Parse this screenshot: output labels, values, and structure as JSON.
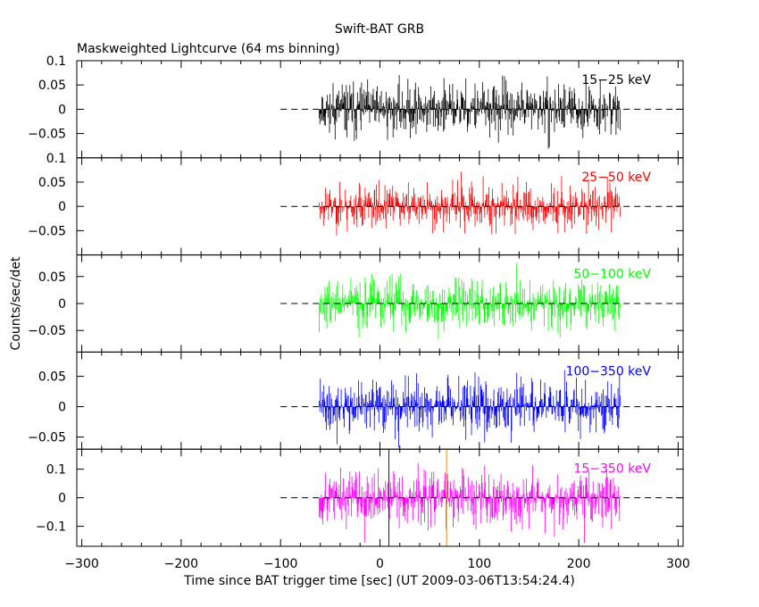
{
  "title": "Swift-BAT GRB",
  "subtitle": "Maskweighted Lightcurve (64 ms binning)",
  "chart_data": {
    "type": "line",
    "ylabel": "Counts/sec/det",
    "xlabel": "Time since BAT trigger time [sec] (UT 2009-03-06T13:54:24.4)",
    "xlim": [
      -305,
      305
    ],
    "xticks": [
      -300,
      -200,
      -100,
      0,
      100,
      200,
      300
    ],
    "xtick_labels": [
      "−300",
      "−200",
      "−100",
      "0",
      "100",
      "200",
      "300"
    ],
    "data_range": [
      -61,
      242
    ],
    "zero_line_from": -100,
    "panels": [
      {
        "name": "15-25 keV",
        "label": "15−25 keV",
        "color": "#000000",
        "ylim": [
          -0.1,
          0.1
        ],
        "yticks": [
          0.1,
          0.05,
          0,
          -0.05
        ],
        "ytick_labels": [
          "0.1",
          "0.05",
          "0",
          "−0.05"
        ],
        "noise_std": 0.027,
        "seed": 11
      },
      {
        "name": "25-50 keV",
        "label": "25−50 keV",
        "color": "#ff0000",
        "ylim": [
          -0.1,
          0.1
        ],
        "yticks": [
          0.1,
          0.05,
          0,
          -0.05
        ],
        "ytick_labels": [
          "0.1",
          "0.05",
          "0",
          "−0.05"
        ],
        "noise_std": 0.024,
        "seed": 23
      },
      {
        "name": "50-100 keV",
        "label": "50−100 keV",
        "color": "#00ff00",
        "ylim": [
          -0.09,
          0.09
        ],
        "yticks": [
          0.05,
          0,
          -0.05
        ],
        "ytick_labels": [
          "0.05",
          "0",
          "−0.05"
        ],
        "noise_std": 0.024,
        "seed": 37
      },
      {
        "name": "100-350 keV",
        "label": "100−350 keV",
        "color": "#0000ff",
        "ylim": [
          -0.07,
          0.09
        ],
        "yticks": [
          0.05,
          0,
          -0.05
        ],
        "ytick_labels": [
          "0.05",
          "0",
          "−0.05"
        ],
        "noise_std": 0.022,
        "seed": 41
      },
      {
        "name": "15-350 keV",
        "label": "15−350 keV",
        "color": "#ff00ff",
        "ylim": [
          -0.17,
          0.17
        ],
        "yticks": [
          0.1,
          0,
          -0.1
        ],
        "ytick_labels": [
          "0.1",
          "0",
          "−0.1"
        ],
        "noise_std": 0.05,
        "seed": 53
      }
    ],
    "markers": [
      {
        "x": 9,
        "color": "#0000ff"
      },
      {
        "x": 67,
        "color": "#ff8000"
      }
    ]
  }
}
